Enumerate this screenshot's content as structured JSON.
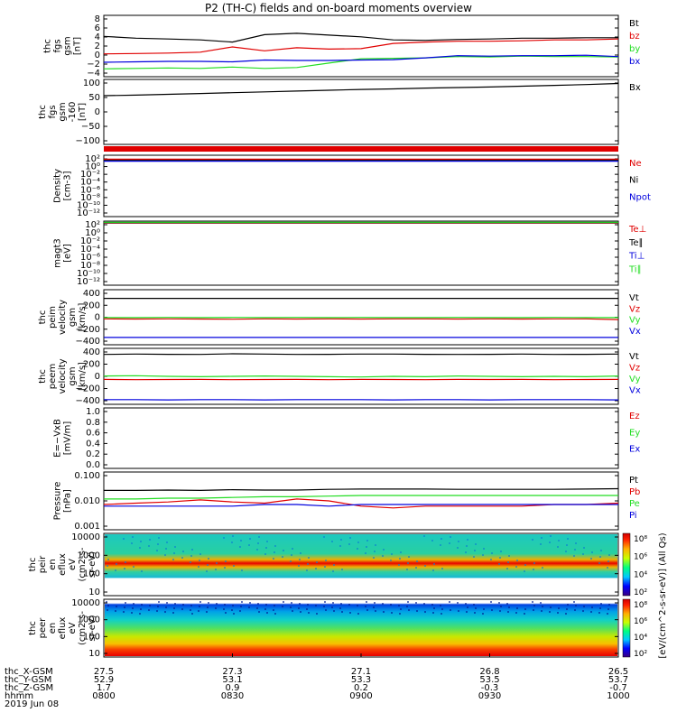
{
  "title": "P2 (TH-C) fields and on-board moments overview",
  "colors": {
    "black": "#000000",
    "red": "#e00000",
    "green": "#22dd22",
    "blue": "#0000dd",
    "frame": "#000000"
  },
  "chart_data": {
    "type": "line",
    "title": "P2 (TH-C) fields and on-board moments overview",
    "date": "2019 Jun 08",
    "x_axis": {
      "row_labels": [
        "thc_X-GSM",
        "thc_Y-GSM",
        "thc_Z-GSM",
        "hhmm"
      ],
      "ticks": [
        {
          "x": "27.5",
          "y": "52.9",
          "z": "1.7",
          "hhmm": "0800"
        },
        {
          "x": "27.3",
          "y": "53.1",
          "z": "0.9",
          "hhmm": "0830"
        },
        {
          "x": "27.1",
          "y": "53.3",
          "z": "0.2",
          "hhmm": "0900"
        },
        {
          "x": "26.8",
          "y": "53.5",
          "z": "-0.3",
          "hhmm": "0930"
        },
        {
          "x": "26.5",
          "y": "53.7",
          "z": "-0.7",
          "hhmm": "1000"
        }
      ]
    },
    "panels": [
      {
        "id": "fgs",
        "ylabel": [
          "thc",
          "fgs",
          "gsm",
          "[nT]"
        ],
        "ylim": [
          -5,
          9
        ],
        "yticks": [
          "8",
          "6",
          "4",
          "2",
          "0",
          "−2",
          "−4"
        ],
        "legend": [
          {
            "text": "Bt",
            "color": "#000000"
          },
          {
            "text": "bz",
            "color": "#e00000"
          },
          {
            "text": "by",
            "color": "#22dd22"
          },
          {
            "text": "bx",
            "color": "#0000dd"
          }
        ],
        "series": [
          {
            "name": "Bt",
            "color": "#000000",
            "values": [
              4.2,
              3.8,
              3.6,
              3.4,
              2.9,
              4.6,
              4.9,
              4.5,
              4.1,
              3.4,
              3.3,
              3.5,
              3.6,
              3.8,
              3.8,
              3.9,
              3.9
            ]
          },
          {
            "name": "bz",
            "color": "#e00000",
            "values": [
              0.2,
              0.3,
              0.4,
              0.6,
              1.8,
              0.9,
              1.6,
              1.3,
              1.4,
              2.6,
              2.9,
              3.1,
              3.1,
              3.2,
              3.4,
              3.4,
              3.6
            ]
          },
          {
            "name": "by",
            "color": "#22dd22",
            "values": [
              -3.2,
              -3.1,
              -3.0,
              -3.1,
              -2.8,
              -3.1,
              -2.9,
              -1.9,
              -0.9,
              -0.8,
              -0.7,
              -0.4,
              -0.5,
              -0.3,
              -0.4,
              -0.4,
              -0.5
            ]
          },
          {
            "name": "bx",
            "color": "#0000dd",
            "values": [
              -1.7,
              -1.6,
              -1.5,
              -1.5,
              -1.6,
              -1.2,
              -1.3,
              -1.3,
              -1.2,
              -1.1,
              -0.7,
              -0.2,
              -0.3,
              -0.2,
              -0.2,
              -0.1,
              -0.4
            ]
          }
        ]
      },
      {
        "id": "fgs-bx",
        "ylabel": [
          "thc",
          "fgs",
          "gsm",
          "-160",
          "[nT]"
        ],
        "ylim": [
          -130,
          110
        ],
        "yticks": [
          "100",
          "50",
          "0",
          "−50",
          "−100"
        ],
        "legend": [
          {
            "text": "Bx",
            "color": "#000000"
          }
        ],
        "series": [
          {
            "name": "Bx",
            "color": "#000000",
            "values": [
              50,
              52,
              55,
              58,
              61,
              64,
              67,
              70,
              73,
              75,
              78,
              80,
              82,
              85,
              88,
              91,
              95
            ]
          }
        ]
      },
      {
        "id": "density",
        "ylabel": [
          "Density",
          "[cm-3]"
        ],
        "scale": "log",
        "yticks": [
          "10²",
          "10⁰",
          "10⁻²",
          "10⁻⁴",
          "10⁻⁶",
          "10⁻⁸",
          "10⁻¹⁰",
          "10⁻¹²"
        ],
        "legend": [
          {
            "text": "Ne",
            "color": "#e00000"
          },
          {
            "text": "Ni",
            "color": "#000000"
          },
          {
            "text": "Npot",
            "color": "#0000dd"
          }
        ],
        "series": [
          {
            "name": "Ne",
            "color": "#e00000",
            "values": [
              1.9,
              1.9,
              1.9,
              1.9,
              1.9,
              1.9,
              1.9,
              1.9,
              1.9,
              1.9,
              1.9,
              1.9,
              1.9,
              1.9,
              1.9,
              1.9,
              1.9
            ]
          },
          {
            "name": "Ni",
            "color": "#000000",
            "values": [
              1.6,
              1.6,
              1.6,
              1.6,
              1.6,
              1.6,
              1.6,
              1.6,
              1.6,
              1.6,
              1.6,
              1.6,
              1.6,
              1.6,
              1.6,
              1.6,
              1.6
            ]
          },
          {
            "name": "Npot",
            "color": "#0000dd",
            "values": [
              1.4,
              1.4,
              1.4,
              1.4,
              1.4,
              1.4,
              1.4,
              1.4,
              1.4,
              1.4,
              1.4,
              1.4,
              1.4,
              1.4,
              1.4,
              1.4,
              1.4
            ]
          }
        ]
      },
      {
        "id": "temp",
        "ylabel": [
          "magt3",
          "[eV]"
        ],
        "scale": "log",
        "yticks": [
          "10²",
          "10⁰",
          "10⁻²",
          "10⁻⁴",
          "10⁻⁶",
          "10⁻⁸",
          "10⁻¹⁰",
          "10⁻¹²"
        ],
        "legend": [
          {
            "text": "Te⊥",
            "color": "#e00000"
          },
          {
            "text": "Te∥",
            "color": "#000000"
          },
          {
            "text": "Ti⊥",
            "color": "#0000dd"
          },
          {
            "text": "Ti∥",
            "color": "#22dd22"
          }
        ],
        "series": [
          {
            "name": "Te⊥",
            "color": "#e00000",
            "values": [
              2.4,
              2.4,
              2.4,
              2.4,
              2.4,
              2.4,
              2.4,
              2.4,
              2.4,
              2.4,
              2.4,
              2.4,
              2.4,
              2.4,
              2.4,
              2.4,
              2.4
            ]
          },
          {
            "name": "Te∥",
            "color": "#000000",
            "values": [
              2.5,
              2.5,
              2.5,
              2.5,
              2.5,
              2.5,
              2.5,
              2.5,
              2.5,
              2.5,
              2.5,
              2.5,
              2.5,
              2.5,
              2.5,
              2.5,
              2.5
            ]
          },
          {
            "name": "Ti∥",
            "color": "#22dd22",
            "values": [
              2.6,
              2.6,
              2.6,
              2.6,
              2.6,
              2.6,
              2.6,
              2.6,
              2.6,
              2.6,
              2.6,
              2.6,
              2.6,
              2.6,
              2.6,
              2.6,
              2.6
            ]
          }
        ]
      },
      {
        "id": "peim",
        "ylabel": [
          "thc",
          "peim",
          "velocity",
          "gsm",
          "[km/s]"
        ],
        "ylim": [
          -400,
          430
        ],
        "yticks": [
          "400",
          "200",
          "0",
          "−200",
          "−400"
        ],
        "legend": [
          {
            "text": "Vt",
            "color": "#000000"
          },
          {
            "text": "Vz",
            "color": "#e00000"
          },
          {
            "text": "Vy",
            "color": "#22dd22"
          },
          {
            "text": "Vx",
            "color": "#0000dd"
          }
        ],
        "series": [
          {
            "name": "Vt",
            "color": "#000000",
            "values": [
              300,
              300,
              300,
              300,
              300,
              300,
              300,
              300,
              300,
              300,
              300,
              300,
              300,
              300,
              300,
              300,
              300
            ]
          },
          {
            "name": "Vz",
            "color": "#e00000",
            "values": [
              -10,
              -12,
              -10,
              -12,
              -15,
              -10,
              -12,
              -10,
              -12,
              -10,
              -10,
              -12,
              -10,
              -12,
              -10,
              -10,
              -20
            ]
          },
          {
            "name": "Vy",
            "color": "#22dd22",
            "values": [
              10,
              10,
              12,
              10,
              12,
              10,
              12,
              10,
              12,
              10,
              10,
              12,
              10,
              10,
              12,
              10,
              10
            ]
          },
          {
            "name": "Vx",
            "color": "#0000dd",
            "values": [
              -290,
              -290,
              -290,
              -290,
              -290,
              -290,
              -290,
              -290,
              -290,
              -290,
              -290,
              -290,
              -290,
              -290,
              -290,
              -290,
              -290
            ]
          }
        ]
      },
      {
        "id": "peem",
        "ylabel": [
          "thc",
          "peem",
          "velocity",
          "gsm",
          "[km/s]"
        ],
        "ylim": [
          -400,
          430
        ],
        "yticks": [
          "400",
          "200",
          "0",
          "−200",
          "−400"
        ],
        "legend": [
          {
            "text": "Vt",
            "color": "#000000"
          },
          {
            "text": "Vz",
            "color": "#e00000"
          },
          {
            "text": "Vy",
            "color": "#22dd22"
          },
          {
            "text": "Vx",
            "color": "#0000dd"
          }
        ],
        "series": [
          {
            "name": "Vt",
            "color": "#000000",
            "values": [
              340,
              345,
              342,
              340,
              350,
              345,
              340,
              342,
              345,
              345,
              342,
              340,
              342,
              345,
              340,
              342,
              345
            ]
          },
          {
            "name": "Vz",
            "color": "#e00000",
            "values": [
              -30,
              -35,
              -32,
              -30,
              -35,
              -32,
              -30,
              -35,
              -30,
              -32,
              -35,
              -30,
              -32,
              -30,
              -35,
              -32,
              -30
            ]
          },
          {
            "name": "Vy",
            "color": "#22dd22",
            "values": [
              20,
              25,
              15,
              10,
              15,
              20,
              15,
              10,
              5,
              15,
              10,
              20,
              15,
              10,
              15,
              10,
              20
            ]
          },
          {
            "name": "Vx",
            "color": "#0000dd",
            "values": [
              -330,
              -330,
              -335,
              -330,
              -330,
              -335,
              -330,
              -330,
              -330,
              -335,
              -330,
              -330,
              -335,
              -330,
              -330,
              -330,
              -335
            ]
          }
        ]
      },
      {
        "id": "efield",
        "ylabel": [
          "E=−VxB",
          "[mV/m]"
        ],
        "ylim": [
          0,
          1
        ],
        "yticks": [
          "1.0",
          "0.8",
          "0.6",
          "0.4",
          "0.2",
          "0.0"
        ],
        "legend": [
          {
            "text": "Ez",
            "color": "#e00000"
          },
          {
            "text": "Ey",
            "color": "#22dd22"
          },
          {
            "text": "Ex",
            "color": "#0000dd"
          }
        ],
        "series": []
      },
      {
        "id": "pressure",
        "ylabel": [
          "Pressure",
          "[nPa]"
        ],
        "scale": "log",
        "yticks": [
          "0.100",
          "0.010",
          "0.001"
        ],
        "legend": [
          {
            "text": "Pt",
            "color": "#000000"
          },
          {
            "text": "Pb",
            "color": "#e00000"
          },
          {
            "text": "Pe",
            "color": "#22dd22"
          },
          {
            "text": "Pi",
            "color": "#0000dd"
          }
        ],
        "series": [
          {
            "name": "Pt",
            "color": "#000000",
            "values": [
              0.028,
              0.028,
              0.029,
              0.028,
              0.03,
              0.029,
              0.029,
              0.031,
              0.032,
              0.032,
              0.032,
              0.031,
              0.031,
              0.031,
              0.031,
              0.032,
              0.033
            ]
          },
          {
            "name": "Pb",
            "color": "#e00000",
            "values": [
              0.007,
              0.008,
              0.009,
              0.011,
              0.009,
              0.008,
              0.012,
              0.01,
              0.006,
              0.005,
              0.006,
              0.006,
              0.006,
              0.006,
              0.007,
              0.007,
              0.008
            ]
          },
          {
            "name": "Pe",
            "color": "#22dd22",
            "values": [
              0.012,
              0.012,
              0.013,
              0.013,
              0.014,
              0.015,
              0.015,
              0.016,
              0.017,
              0.017,
              0.017,
              0.017,
              0.017,
              0.017,
              0.017,
              0.017,
              0.017
            ]
          },
          {
            "name": "Pi",
            "color": "#0000dd",
            "values": [
              0.006,
              0.006,
              0.006,
              0.006,
              0.006,
              0.007,
              0.007,
              0.006,
              0.007,
              0.007,
              0.007,
              0.007,
              0.007,
              0.007,
              0.007,
              0.007,
              0.007
            ]
          }
        ]
      },
      {
        "id": "peir",
        "type": "heatmap",
        "ylabel": [
          "thc",
          "peir",
          "en",
          "eflux",
          "eV",
          "(cm2-s-",
          "sr-eV)"
        ],
        "scale": "log",
        "yticks": [
          "10000",
          "1000",
          "100",
          "10"
        ]
      },
      {
        "id": "peer",
        "type": "heatmap",
        "ylabel": [
          "thc",
          "peer",
          "en",
          "eflux",
          "eV",
          "(cm2-s-",
          "sr-eV)"
        ],
        "scale": "log",
        "yticks": [
          "10000",
          "1000",
          "100",
          "10"
        ]
      }
    ],
    "colorbar": {
      "label": "[eV/(cm^2-s-sr-eV)] (All Qs)",
      "ticks_peir": [
        "10⁸",
        "10⁶",
        "10⁴",
        "10²"
      ],
      "ticks_peer": [
        "10⁸",
        "10⁶",
        "10⁴",
        "10²"
      ]
    }
  }
}
